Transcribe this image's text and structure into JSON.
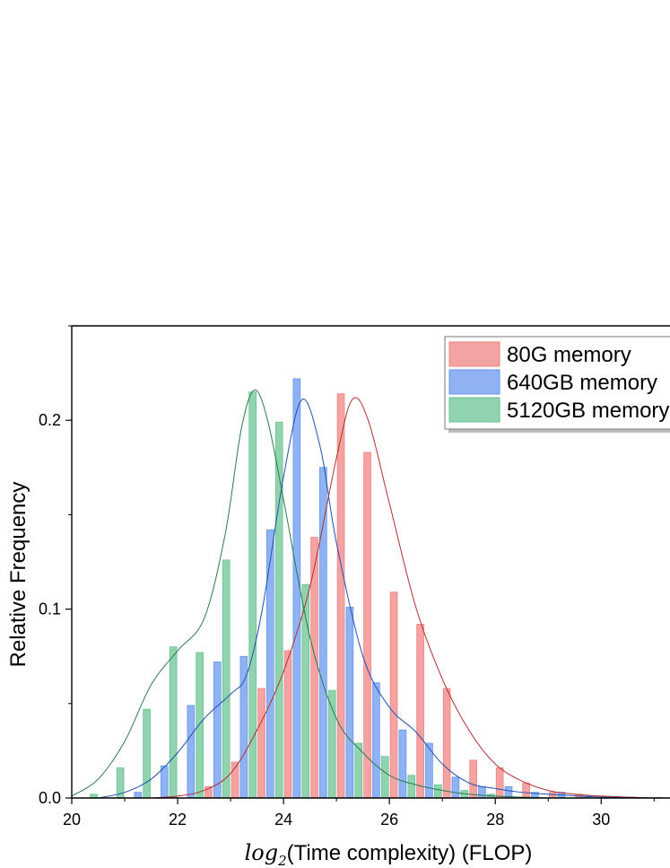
{
  "chart_data": {
    "type": "bar",
    "xlabel": {
      "log_prefix": "log",
      "log_subscript": "2",
      "rest": "(Time complexity) (FLOP)"
    },
    "ylabel": "Relative Frequency",
    "xlim": [
      20,
      31.3
    ],
    "ylim": [
      0,
      0.25
    ],
    "xticks": [
      "20",
      "22",
      "24",
      "26",
      "28",
      "30"
    ],
    "yticks": [
      "0.0",
      "0.1",
      "0.2"
    ],
    "bin_width": 0.5,
    "grid": false,
    "legend_position": "top-right",
    "series": [
      {
        "name": "80G memory",
        "color": "#f08080",
        "bins": [
          {
            "x": 22.75,
            "y": 0.006
          },
          {
            "x": 23.25,
            "y": 0.019
          },
          {
            "x": 23.75,
            "y": 0.058
          },
          {
            "x": 24.25,
            "y": 0.078
          },
          {
            "x": 24.75,
            "y": 0.138
          },
          {
            "x": 25.25,
            "y": 0.214
          },
          {
            "x": 25.75,
            "y": 0.183
          },
          {
            "x": 26.25,
            "y": 0.109
          },
          {
            "x": 26.75,
            "y": 0.092
          },
          {
            "x": 27.25,
            "y": 0.058
          },
          {
            "x": 27.75,
            "y": 0.02
          },
          {
            "x": 28.25,
            "y": 0.016
          },
          {
            "x": 28.75,
            "y": 0.008
          },
          {
            "x": 29.25,
            "y": 0.003
          },
          {
            "x": 29.75,
            "y": 0.002
          },
          {
            "x": 30.25,
            "y": 0.001
          },
          {
            "x": 30.75,
            "y": 0.0005
          },
          {
            "x": 31.25,
            "y": 0.0003
          }
        ],
        "curve": [
          [
            21.5,
            0.0
          ],
          [
            22.0,
            0.001
          ],
          [
            22.5,
            0.004
          ],
          [
            23.0,
            0.013
          ],
          [
            23.5,
            0.036
          ],
          [
            24.0,
            0.067
          ],
          [
            24.5,
            0.112
          ],
          [
            25.0,
            0.18
          ],
          [
            25.3,
            0.211
          ],
          [
            25.6,
            0.2
          ],
          [
            26.0,
            0.156
          ],
          [
            26.5,
            0.101
          ],
          [
            27.0,
            0.063
          ],
          [
            27.5,
            0.036
          ],
          [
            28.0,
            0.018
          ],
          [
            28.5,
            0.009
          ],
          [
            29.0,
            0.004
          ],
          [
            29.5,
            0.002
          ],
          [
            30.0,
            0.001
          ],
          [
            31.0,
            0.0
          ]
        ]
      },
      {
        "name": "640GB memory",
        "color": "#6495ed",
        "bins": [
          {
            "x": 21.25,
            "y": 0.003
          },
          {
            "x": 21.75,
            "y": 0.017
          },
          {
            "x": 22.25,
            "y": 0.049
          },
          {
            "x": 22.75,
            "y": 0.072
          },
          {
            "x": 23.25,
            "y": 0.075
          },
          {
            "x": 23.75,
            "y": 0.142
          },
          {
            "x": 24.25,
            "y": 0.222
          },
          {
            "x": 24.75,
            "y": 0.175
          },
          {
            "x": 25.25,
            "y": 0.101
          },
          {
            "x": 25.75,
            "y": 0.061
          },
          {
            "x": 26.25,
            "y": 0.036
          },
          {
            "x": 26.75,
            "y": 0.029
          },
          {
            "x": 27.25,
            "y": 0.011
          },
          {
            "x": 27.75,
            "y": 0.006
          },
          {
            "x": 28.25,
            "y": 0.006
          },
          {
            "x": 28.75,
            "y": 0.003
          },
          {
            "x": 29.25,
            "y": 0.003
          },
          {
            "x": 29.75,
            "y": 0.001
          },
          {
            "x": 30.25,
            "y": 0.0005
          }
        ],
        "curve": [
          [
            20.5,
            0.0
          ],
          [
            21.0,
            0.003
          ],
          [
            21.5,
            0.01
          ],
          [
            22.0,
            0.024
          ],
          [
            22.5,
            0.042
          ],
          [
            23.0,
            0.055
          ],
          [
            23.3,
            0.065
          ],
          [
            23.6,
            0.1
          ],
          [
            24.0,
            0.17
          ],
          [
            24.35,
            0.211
          ],
          [
            24.7,
            0.185
          ],
          [
            25.0,
            0.135
          ],
          [
            25.5,
            0.075
          ],
          [
            26.0,
            0.048
          ],
          [
            26.5,
            0.035
          ],
          [
            27.0,
            0.018
          ],
          [
            27.5,
            0.008
          ],
          [
            28.0,
            0.005
          ],
          [
            28.5,
            0.003
          ],
          [
            29.0,
            0.002
          ],
          [
            30.0,
            0.0005
          ],
          [
            31.0,
            0.0
          ]
        ]
      },
      {
        "name": "5120GB memory",
        "color": "#66c28f",
        "bins": [
          {
            "x": 20.25,
            "y": 0.002
          },
          {
            "x": 20.75,
            "y": 0.016
          },
          {
            "x": 21.25,
            "y": 0.047
          },
          {
            "x": 21.75,
            "y": 0.08
          },
          {
            "x": 22.25,
            "y": 0.077
          },
          {
            "x": 22.75,
            "y": 0.126
          },
          {
            "x": 23.25,
            "y": 0.215
          },
          {
            "x": 23.75,
            "y": 0.199
          },
          {
            "x": 24.25,
            "y": 0.113
          },
          {
            "x": 24.75,
            "y": 0.057
          },
          {
            "x": 25.25,
            "y": 0.029
          },
          {
            "x": 25.75,
            "y": 0.022
          },
          {
            "x": 26.25,
            "y": 0.012
          },
          {
            "x": 26.75,
            "y": 0.007
          },
          {
            "x": 27.25,
            "y": 0.004
          },
          {
            "x": 27.75,
            "y": 0.002
          }
        ],
        "curve": [
          [
            20.0,
            0.001
          ],
          [
            20.5,
            0.01
          ],
          [
            21.0,
            0.03
          ],
          [
            21.5,
            0.06
          ],
          [
            22.0,
            0.078
          ],
          [
            22.5,
            0.095
          ],
          [
            22.9,
            0.14
          ],
          [
            23.2,
            0.195
          ],
          [
            23.45,
            0.216
          ],
          [
            23.7,
            0.2
          ],
          [
            24.0,
            0.158
          ],
          [
            24.5,
            0.085
          ],
          [
            25.0,
            0.042
          ],
          [
            25.5,
            0.024
          ],
          [
            26.0,
            0.012
          ],
          [
            26.5,
            0.007
          ],
          [
            27.0,
            0.004
          ],
          [
            27.5,
            0.002
          ],
          [
            28.0,
            0.001
          ],
          [
            29.0,
            0.0
          ]
        ]
      }
    ]
  }
}
